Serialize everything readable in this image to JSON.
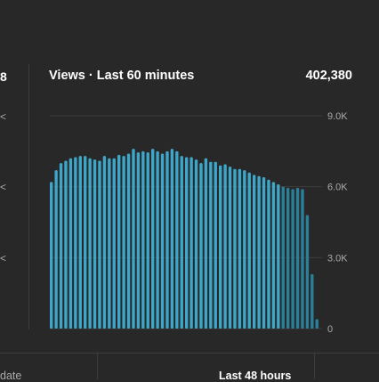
{
  "left_panel": {
    "value_fragment": "8",
    "tick_fragments": [
      "<",
      "<",
      "<"
    ]
  },
  "footer": {
    "left_label_fragment": "date",
    "right_label": "Last 48 hours"
  },
  "colors": {
    "background": "#282828",
    "bar": "#3ea6c8",
    "bar_dark": "#2a7f99",
    "gridline": "#3d3d3d",
    "text_muted": "#aaaaaa"
  },
  "chart_data": {
    "type": "bar",
    "title": "Views · Last 60 minutes",
    "total": "402,380",
    "ylim": [
      0,
      9000
    ],
    "y_ticks": [
      {
        "value": 9000,
        "label": "9.0K"
      },
      {
        "value": 6000,
        "label": "6.0K"
      },
      {
        "value": 3000,
        "label": "3.0K"
      },
      {
        "value": 0,
        "label": "0"
      }
    ],
    "grid": true,
    "values": [
      6200,
      6700,
      7000,
      7100,
      7200,
      7250,
      7300,
      7300,
      7200,
      7150,
      7100,
      7300,
      7200,
      7200,
      7350,
      7300,
      7400,
      7600,
      7450,
      7500,
      7450,
      7600,
      7500,
      7400,
      7500,
      7600,
      7500,
      7300,
      7250,
      7250,
      7150,
      7000,
      7200,
      7050,
      7050,
      6900,
      6950,
      6850,
      6750,
      6750,
      6700,
      6600,
      6500,
      6450,
      6400,
      6300,
      6200,
      6100,
      6000,
      5950,
      5900,
      5950,
      5900,
      4800,
      2300,
      400
    ],
    "faded_from_index": 48
  }
}
